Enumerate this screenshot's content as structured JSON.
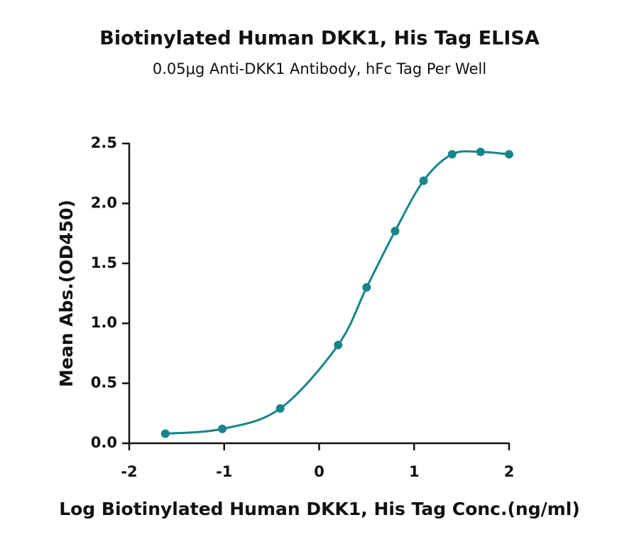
{
  "chart_data": {
    "type": "scatter",
    "title": "Biotinylated Human DKK1, His Tag ELISA",
    "subtitle": "0.05μg Anti-DKK1 Antibody, hFc Tag Per Well",
    "x_label": "Log Biotinylated Human DKK1, His  Tag Conc.(ng/ml)",
    "y_label": "Mean Abs.(OD450)",
    "series": [
      {
        "color": "#17858a",
        "x": [
          -1.62,
          -1.02,
          -0.41,
          0.2,
          0.5,
          0.8,
          1.1,
          1.4,
          1.7,
          2.0
        ],
        "values": [
          0.08,
          0.12,
          0.29,
          0.82,
          1.3,
          1.77,
          2.19,
          2.41,
          2.43,
          2.41
        ]
      }
    ],
    "xlim": [
      -2,
      2
    ],
    "xticks": [
      -2,
      -1,
      0,
      1,
      2
    ],
    "ylim": [
      0,
      2.5
    ],
    "yticks": [
      {
        "value": 0,
        "label": "0.0"
      },
      {
        "value": 0.5,
        "label": "0.5"
      },
      {
        "value": 1,
        "label": "1.0"
      },
      {
        "value": 1.5,
        "label": "1.5"
      },
      {
        "value": 2,
        "label": "2.0"
      },
      {
        "value": 2.5,
        "label": "2.5"
      }
    ]
  }
}
